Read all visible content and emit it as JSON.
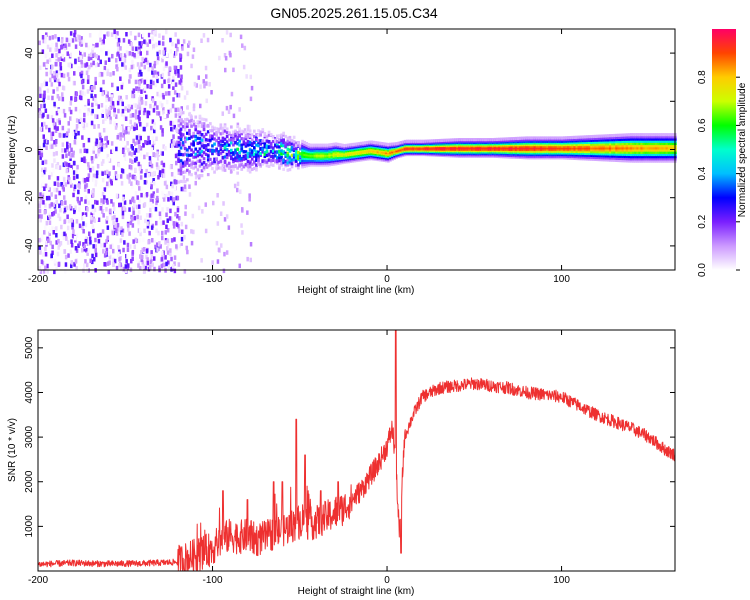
{
  "figure_title": "GN05.2025.261.15.05.C34",
  "chart_data": [
    {
      "type": "heatmap",
      "title": "GN05.2025.261.15.05.C34",
      "xlabel": "Height of straight line (km)",
      "ylabel": "Frequency (Hz)",
      "xlim": [
        -200,
        165
      ],
      "ylim": [
        -50,
        50
      ],
      "xticks": [
        -200,
        -100,
        0,
        100
      ],
      "xtick_labels": [
        "-200",
        "-100",
        "0",
        "100"
      ],
      "yticks": [
        -40,
        -20,
        0,
        20,
        40
      ],
      "ytick_labels": [
        "-40",
        "-20",
        "0",
        "20",
        "40"
      ],
      "colorbar": {
        "label": "Normalized spectral amplitude",
        "range": [
          0,
          1
        ],
        "ticks": [
          0.0,
          0.2,
          0.4,
          0.6,
          0.8
        ],
        "tick_labels": [
          "0.0",
          "0.2",
          "0.4",
          "0.6",
          "0.8"
        ],
        "colors": [
          "#ffffff",
          "#cc99ff",
          "#7a1fff",
          "#0000ff",
          "#00bfff",
          "#00ffcc",
          "#00ff00",
          "#ccff00",
          "#ffcc00",
          "#ff4400",
          "#ff0066"
        ]
      },
      "ridge": {
        "x": [
          -120,
          -110,
          -100,
          -90,
          -80,
          -70,
          -60,
          -55,
          -50,
          -45,
          -40,
          -35,
          -30,
          -25,
          -20,
          -15,
          -10,
          -5,
          0,
          5,
          10,
          20,
          40,
          60,
          80,
          100,
          120,
          140,
          165
        ],
        "freq": [
          0.5,
          1.0,
          0.5,
          0.0,
          -0.5,
          0.0,
          -1.0,
          -1.5,
          -2.0,
          -2.5,
          -2.5,
          -2.5,
          -2.0,
          -2.0,
          -1.5,
          -1.0,
          -0.5,
          -1.0,
          -1.5,
          -0.5,
          0.5,
          0.5,
          0.5,
          0.5,
          0.5,
          0.5,
          0.5,
          0.5,
          0.5
        ],
        "amplitude": [
          0.3,
          0.32,
          0.35,
          0.38,
          0.4,
          0.45,
          0.5,
          0.55,
          0.6,
          0.65,
          0.68,
          0.7,
          0.72,
          0.74,
          0.76,
          0.78,
          0.8,
          0.82,
          0.85,
          0.88,
          0.92,
          0.95,
          0.95,
          0.95,
          0.94,
          0.92,
          0.88,
          0.85,
          0.8
        ],
        "spread_hz": [
          12,
          10,
          8,
          7,
          6,
          5,
          5,
          4,
          4,
          3,
          3,
          3,
          3,
          2.5,
          2.5,
          2.5,
          2.5,
          2.5,
          2.5,
          2,
          2,
          2,
          2.5,
          2.5,
          3,
          3,
          3.5,
          4,
          4
        ]
      },
      "noise_region": {
        "x_range": [
          -200,
          -118
        ],
        "amplitude_range": [
          0.0,
          0.25
        ]
      }
    },
    {
      "type": "line",
      "xlabel": "Height of straight line (km)",
      "ylabel": "SNR (10 * v/v)",
      "xlim": [
        -200,
        165
      ],
      "ylim": [
        0,
        5400
      ],
      "xticks": [
        -200,
        -100,
        0,
        100
      ],
      "xtick_labels": [
        "-200",
        "-100",
        "0",
        "100"
      ],
      "yticks": [
        1000,
        2000,
        3000,
        4000,
        5000
      ],
      "ytick_labels": [
        "1000",
        "2000",
        "3000",
        "4000",
        "5000"
      ],
      "series": [
        {
          "name": "SNR",
          "color": "#ee3030",
          "x": [
            -200,
            -180,
            -160,
            -140,
            -120,
            -110,
            -100,
            -95,
            -90,
            -85,
            -80,
            -75,
            -70,
            -65,
            -60,
            -55,
            -50,
            -48,
            -45,
            -40,
            -35,
            -30,
            -25,
            -20,
            -15,
            -10,
            -5,
            0,
            3,
            5,
            7,
            10,
            15,
            20,
            25,
            30,
            40,
            50,
            60,
            70,
            80,
            90,
            100,
            110,
            120,
            130,
            140,
            150,
            160,
            165
          ],
          "y": [
            150,
            180,
            160,
            170,
            200,
            350,
            500,
            700,
            800,
            750,
            800,
            700,
            750,
            850,
            900,
            1000,
            1100,
            1200,
            1050,
            1100,
            1200,
            1300,
            1400,
            1600,
            1800,
            2100,
            2400,
            2800,
            3200,
            2500,
            800,
            3000,
            3500,
            3900,
            4000,
            4100,
            4150,
            4200,
            4150,
            4100,
            4000,
            3950,
            3900,
            3700,
            3500,
            3350,
            3200,
            3000,
            2700,
            2600
          ],
          "spikes": [
            [
              -94,
              1800
            ],
            [
              -80,
              1600
            ],
            [
              -65,
              2000
            ],
            [
              -60,
              2000
            ],
            [
              -52,
              3400
            ],
            [
              -47,
              2600
            ],
            [
              -38,
              1800
            ],
            [
              -28,
              2000
            ],
            [
              5,
              5400
            ],
            [
              8,
              400
            ]
          ]
        }
      ]
    }
  ]
}
